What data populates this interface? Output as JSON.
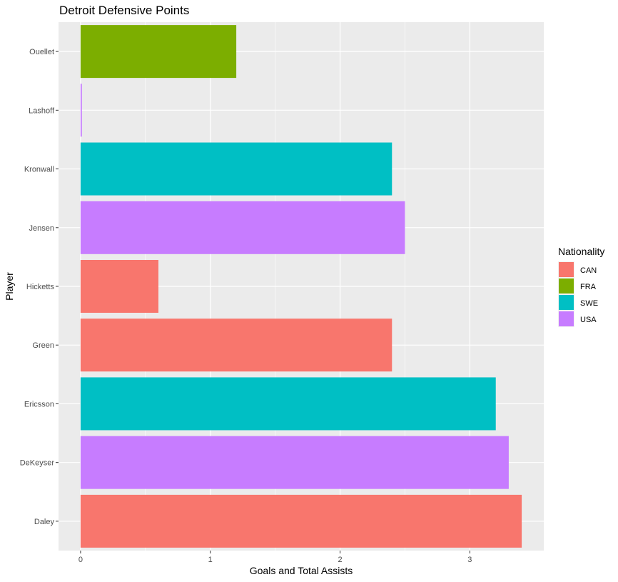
{
  "chart_data": {
    "type": "bar",
    "orientation": "horizontal",
    "title": "Detroit Defensive Points",
    "xlabel": "Goals and Total Assists",
    "ylabel": "Player",
    "xlim": [
      -0.17,
      3.57
    ],
    "x_ticks": [
      0,
      1,
      2,
      3
    ],
    "grid": true,
    "legend_position": "right",
    "legend": {
      "title": "Nationality",
      "entries": [
        {
          "label": "CAN",
          "color": "#F8766D"
        },
        {
          "label": "FRA",
          "color": "#7CAE00"
        },
        {
          "label": "SWE",
          "color": "#00BFC4"
        },
        {
          "label": "USA",
          "color": "#C77CFF"
        }
      ]
    },
    "categories": [
      "Daley",
      "DeKeyser",
      "Ericsson",
      "Green",
      "Hicketts",
      "Jensen",
      "Kronwall",
      "Lashoff",
      "Ouellet"
    ],
    "values": [
      3.4,
      3.3,
      3.2,
      2.4,
      0.6,
      2.5,
      2.4,
      0.01,
      1.2
    ],
    "nationality": [
      "CAN",
      "USA",
      "SWE",
      "CAN",
      "CAN",
      "USA",
      "SWE",
      "USA",
      "FRA"
    ]
  }
}
